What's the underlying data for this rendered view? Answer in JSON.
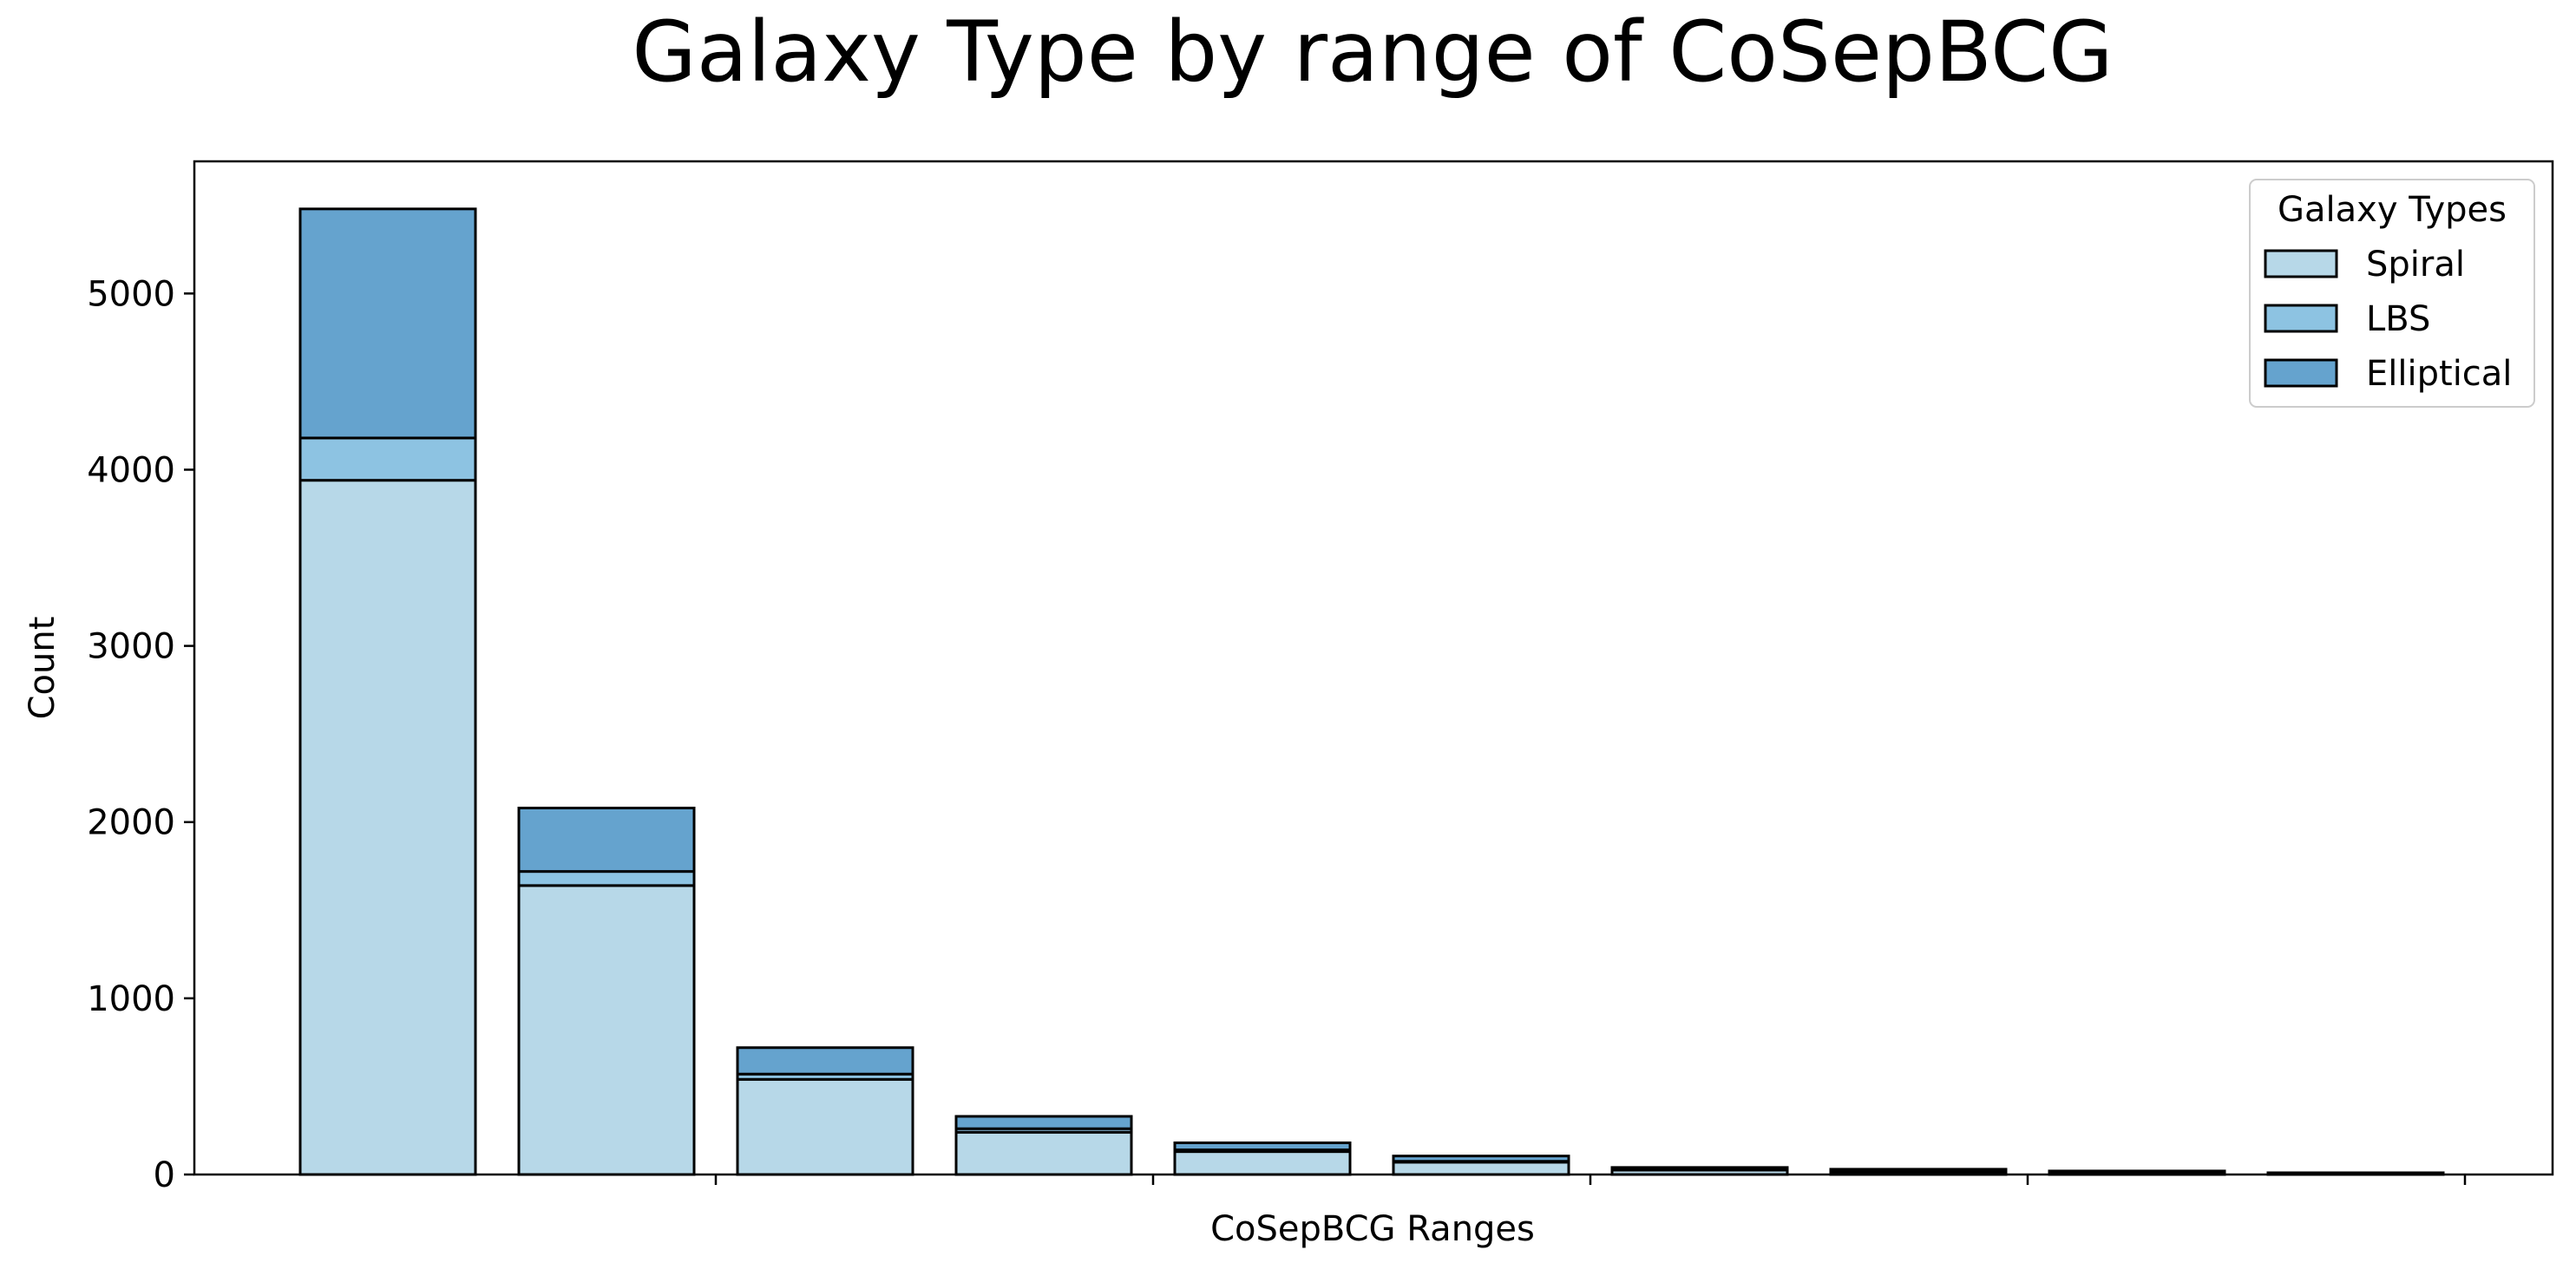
{
  "chart_data": {
    "type": "bar",
    "stacked": true,
    "title": "Galaxy Type by range of CoSepBCG",
    "xlabel": "CoSepBCG Ranges",
    "ylabel": "Count",
    "ylim": [
      0,
      5750
    ],
    "yticks": [
      0,
      1000,
      2000,
      3000,
      4000,
      5000
    ],
    "bar_count": 10,
    "xtick_positions": [
      1.5,
      3.5,
      5.5,
      7.5,
      9.5
    ],
    "categories": [
      "",
      "",
      "",
      "",
      "",
      "",
      "",
      "",
      "",
      ""
    ],
    "series": [
      {
        "name": "Spiral",
        "color": "#b7d8e8",
        "values": [
          3940,
          1640,
          540,
          240,
          130,
          70,
          25,
          15,
          10,
          5
        ]
      },
      {
        "name": "LBS",
        "color": "#8dc3e2",
        "values": [
          240,
          80,
          30,
          20,
          10,
          5,
          5,
          5,
          5,
          0
        ]
      },
      {
        "name": "Elliptical",
        "color": "#65a3ce",
        "values": [
          1300,
          360,
          150,
          70,
          40,
          30,
          10,
          10,
          5,
          5
        ]
      }
    ],
    "legend": {
      "title": "Galaxy Types",
      "position": "top-right"
    },
    "grid": false
  }
}
